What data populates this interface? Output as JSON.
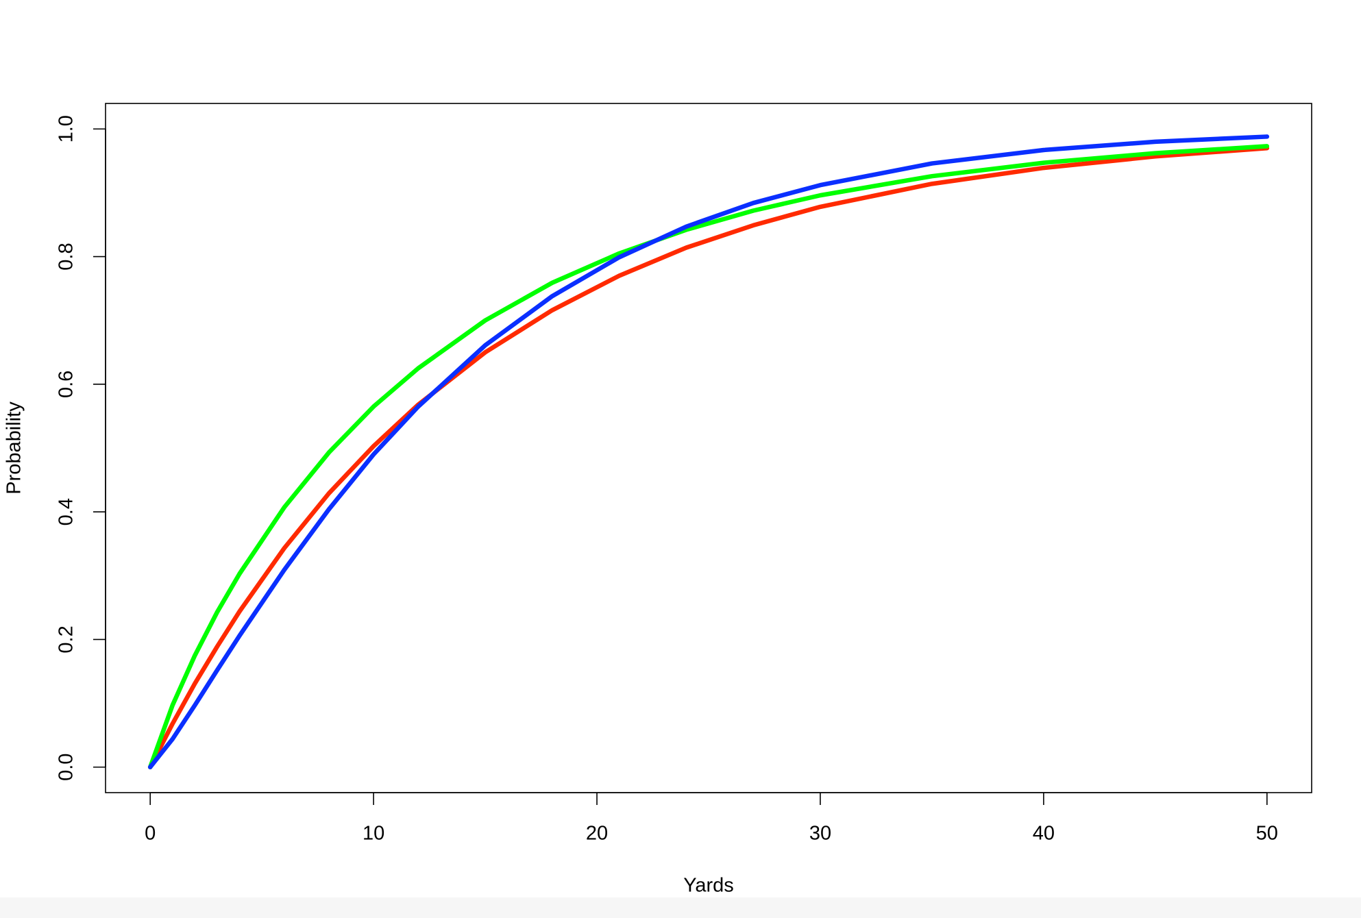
{
  "chart_data": {
    "type": "line",
    "x_label": "Yards",
    "y_label": "Probability",
    "x": [
      0,
      1,
      2,
      3,
      4,
      6,
      8,
      10,
      12,
      15,
      18,
      21,
      24,
      27,
      30,
      35,
      40,
      45,
      50
    ],
    "series": [
      {
        "color": "#ff2a00",
        "values": [
          0,
          0.068,
          0.131,
          0.189,
          0.244,
          0.343,
          0.429,
          0.503,
          0.568,
          0.65,
          0.716,
          0.77,
          0.814,
          0.849,
          0.878,
          0.914,
          0.939,
          0.957,
          0.97
        ]
      },
      {
        "color": "#00ff00",
        "values": [
          0,
          0.097,
          0.175,
          0.243,
          0.303,
          0.407,
          0.493,
          0.565,
          0.625,
          0.7,
          0.759,
          0.805,
          0.842,
          0.872,
          0.896,
          0.926,
          0.947,
          0.962,
          0.973
        ]
      },
      {
        "color": "#0a2fff",
        "values": [
          0,
          0.044,
          0.097,
          0.152,
          0.206,
          0.309,
          0.404,
          0.49,
          0.565,
          0.661,
          0.738,
          0.799,
          0.847,
          0.884,
          0.912,
          0.946,
          0.967,
          0.98,
          0.988
        ]
      }
    ],
    "xlim": [
      -2,
      52
    ],
    "ylim": [
      -0.04,
      1.04
    ],
    "xticks": [
      0,
      10,
      20,
      30,
      40,
      50
    ],
    "yticks": [
      {
        "value": 0,
        "label": "0.0"
      },
      {
        "value": 0.2,
        "label": "0.2"
      },
      {
        "value": 0.4,
        "label": "0.4"
      },
      {
        "value": 0.6,
        "label": "0.6"
      },
      {
        "value": 0.8,
        "label": "0.8"
      },
      {
        "value": 1,
        "label": "1.0"
      }
    ],
    "grid": false
  }
}
